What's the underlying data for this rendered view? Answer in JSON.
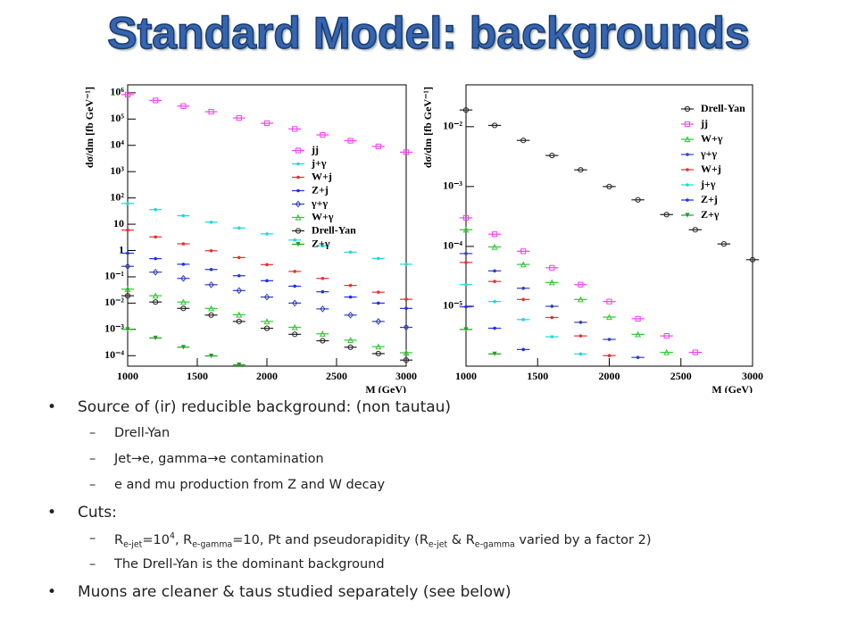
{
  "title": "Standard Model: backgrounds",
  "chart_data": [
    {
      "type": "scatter",
      "log_y": true,
      "legend": "center right",
      "xlabel": "M (GeV)",
      "ylabel": "dσ/dm [fb GeV⁻¹]",
      "xlim": [
        1000,
        3000
      ],
      "xticks": [
        1000,
        1500,
        2000,
        2500,
        3000
      ],
      "ylim": [
        4e-05,
        2000000
      ],
      "yticks": [
        {
          "value": 0.0001,
          "label": "10⁻⁴"
        },
        {
          "value": 0.001,
          "label": "10⁻³"
        },
        {
          "value": 0.01,
          "label": "10⁻²"
        },
        {
          "value": 0.1,
          "label": "10⁻¹"
        },
        1,
        10,
        {
          "value": 100,
          "label": "10²"
        },
        {
          "value": 1000,
          "label": "10³"
        },
        {
          "value": 10000,
          "label": "10⁴"
        },
        {
          "value": 100000,
          "label": "10⁵"
        },
        {
          "value": 1000000,
          "label": "10⁶"
        }
      ],
      "x": [
        1000,
        1200,
        1400,
        1600,
        1800,
        2000,
        2200,
        2400,
        2600,
        2800,
        3000
      ],
      "series": [
        {
          "name": "jj",
          "color": "#f040f0",
          "marker": "square",
          "values": [
            850000,
            510000,
            310000,
            190000,
            110000,
            69000,
            42000,
            25000,
            15000,
            9100,
            5500
          ]
        },
        {
          "name": "j+γ",
          "color": "#20d8d8",
          "marker": "star",
          "values": [
            62,
            36,
            21,
            12,
            7.2,
            4.3,
            2.5,
            1.5,
            0.87,
            0.5,
            0.3
          ]
        },
        {
          "name": "W+j",
          "color": "#e83030",
          "marker": "star",
          "values": [
            6,
            3.3,
            1.8,
            0.98,
            0.54,
            0.29,
            0.16,
            0.087,
            0.047,
            0.026,
            0.014
          ]
        },
        {
          "name": "Z+j",
          "color": "#2030e0",
          "marker": "star",
          "values": [
            0.79,
            0.49,
            0.3,
            0.19,
            0.11,
            0.071,
            0.044,
            0.027,
            0.017,
            0.01,
            0.0063
          ]
        },
        {
          "name": "γ+γ",
          "color": "#3040c0",
          "marker": "diamond",
          "values": [
            0.25,
            0.15,
            0.087,
            0.05,
            0.03,
            0.017,
            0.01,
            0.006,
            0.0035,
            0.002,
            0.0012
          ]
        },
        {
          "name": "W+γ",
          "color": "#30c830",
          "marker": "triangle",
          "values": [
            0.034,
            0.019,
            0.011,
            0.0063,
            0.0036,
            0.002,
            0.0012,
            0.00068,
            0.00039,
            0.00022,
            0.00013
          ]
        },
        {
          "name": "Drell-Yan",
          "color": "#222222",
          "marker": "circle",
          "values": [
            0.019,
            0.011,
            0.0063,
            0.0035,
            0.002,
            0.0011,
            0.00065,
            0.00037,
            0.00021,
            0.00012,
            6.8e-05
          ]
        },
        {
          "name": "Z+γ",
          "color": "#20a020",
          "marker": "tri-down",
          "values": [
            0.001,
            0.00047,
            0.00021,
            9.8e-05,
            4.5e-05,
            null,
            null,
            null,
            null,
            null,
            null
          ]
        }
      ]
    },
    {
      "type": "scatter",
      "log_y": true,
      "legend": "upper right",
      "xlabel": "M (GeV)",
      "ylabel": "dσ/dm [fb GeV⁻¹]",
      "xlim": [
        1000,
        3000
      ],
      "xticks": [
        1000,
        1500,
        2000,
        2500,
        3000
      ],
      "ylim": [
        1e-06,
        0.05
      ],
      "yticks": [
        {
          "value": 1e-05,
          "label": "10⁻⁵"
        },
        {
          "value": 0.0001,
          "label": "10⁻⁴"
        },
        {
          "value": 0.001,
          "label": "10⁻³"
        },
        {
          "value": 0.01,
          "label": "10⁻²"
        }
      ],
      "x": [
        1000,
        1200,
        1400,
        1600,
        1800,
        2000,
        2200,
        2400,
        2600,
        2800,
        3000
      ],
      "series": [
        {
          "name": "Drell-Yan",
          "color": "#222222",
          "marker": "circle",
          "values": [
            0.019,
            0.0105,
            0.0059,
            0.0033,
            0.0019,
            0.001,
            0.0006,
            0.00034,
            0.00019,
            0.00011,
            6e-05
          ]
        },
        {
          "name": "jj",
          "color": "#f040f0",
          "marker": "square",
          "values": [
            0.0003,
            0.00016,
            8.3e-05,
            4.4e-05,
            2.3e-05,
            1.2e-05,
            6.2e-06,
            3.2e-06,
            1.7e-06,
            null,
            null
          ]
        },
        {
          "name": "W+γ",
          "color": "#30c830",
          "marker": "triangle",
          "values": [
            0.00019,
            9.8e-05,
            5e-05,
            2.5e-05,
            1.3e-05,
            6.6e-06,
            3.4e-06,
            1.7e-06,
            null,
            null,
            null
          ]
        },
        {
          "name": "γ+γ",
          "color": "#3040c0",
          "marker": "star",
          "values": [
            7.6e-05,
            3.9e-05,
            2e-05,
            1e-05,
            5.4e-06,
            2.8e-06,
            1.4e-06,
            null,
            null,
            null,
            null
          ]
        },
        {
          "name": "W+j",
          "color": "#e83030",
          "marker": "star",
          "values": [
            5.4e-05,
            2.6e-05,
            1.3e-05,
            6.5e-06,
            3.2e-06,
            1.5e-06,
            null,
            null,
            null,
            null,
            null
          ]
        },
        {
          "name": "j+γ",
          "color": "#20d8d8",
          "marker": "star",
          "values": [
            2.3e-05,
            1.2e-05,
            6e-06,
            3.1e-06,
            1.6e-06,
            null,
            null,
            null,
            null,
            null,
            null
          ]
        },
        {
          "name": "Z+j",
          "color": "#2030e0",
          "marker": "star",
          "values": [
            9.8e-06,
            4.3e-06,
            1.9e-06,
            null,
            null,
            null,
            null,
            null,
            null,
            null,
            null
          ]
        },
        {
          "name": "Z+γ",
          "color": "#20a020",
          "marker": "tri-down",
          "values": [
            4.1e-06,
            1.6e-06,
            null,
            null,
            null,
            null,
            null,
            null,
            null,
            null,
            null
          ]
        }
      ]
    }
  ],
  "bullets": [
    {
      "parts": [
        {
          "text": "Source of (ir) reducible background: (non tautau)"
        }
      ],
      "items": [
        {
          "parts": [
            {
              "text": "Drell-Yan"
            }
          ]
        },
        {
          "parts": [
            {
              "text": "Jet→e, gamma→e contamination"
            }
          ]
        },
        {
          "parts": [
            {
              "text": "e and mu production from Z and W decay"
            }
          ]
        }
      ]
    },
    {
      "parts": [
        {
          "text": "Cuts:"
        }
      ],
      "items": [
        {
          "parts": [
            {
              "text": "R"
            },
            {
              "text": "e-jet",
              "style": "sub"
            },
            {
              "text": "=10"
            },
            {
              "text": "4",
              "style": "sup"
            },
            {
              "text": ", R"
            },
            {
              "text": "e-gamma",
              "style": "sub"
            },
            {
              "text": "=10, Pt and pseudorapidity (R"
            },
            {
              "text": "e-jet",
              "style": "sub"
            },
            {
              "text": " & R"
            },
            {
              "text": "e-gamma",
              "style": "sub"
            },
            {
              "text": " varied by a factor 2)"
            }
          ]
        },
        {
          "parts": [
            {
              "text": "The Drell-Yan is the dominant background"
            }
          ]
        }
      ]
    },
    {
      "parts": [
        {
          "text": "Muons are cleaner & taus studied separately (see below)"
        }
      ],
      "items": []
    }
  ]
}
